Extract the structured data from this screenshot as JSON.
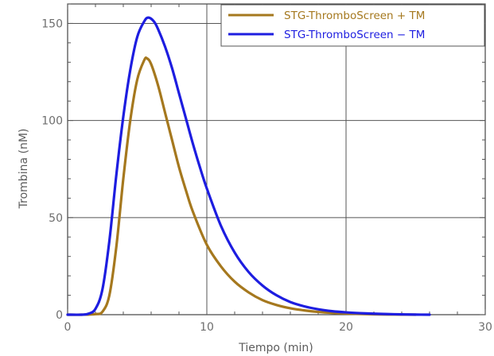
{
  "chart_data": {
    "type": "line",
    "title": "",
    "xlabel": "Tiempo (min)",
    "ylabel": "Trombina (nM)",
    "xlim": [
      0,
      30
    ],
    "ylim": [
      0,
      160
    ],
    "x_ticks": [
      0,
      10,
      20,
      30
    ],
    "y_ticks": [
      0,
      50,
      100,
      150
    ],
    "x_tick_labels": [
      "0",
      "10",
      "20",
      "30"
    ],
    "y_tick_labels": [
      "0",
      "50",
      "100",
      "150"
    ],
    "grid": true,
    "legend_position": "top-right",
    "series": [
      {
        "name": "STG-ThromboScreen + TM",
        "color": "#a5781e",
        "points": [
          [
            0,
            0
          ],
          [
            1,
            0
          ],
          [
            2,
            0.3
          ],
          [
            2.5,
            1.5
          ],
          [
            3,
            10
          ],
          [
            3.5,
            35
          ],
          [
            4,
            70
          ],
          [
            4.5,
            100
          ],
          [
            5,
            121
          ],
          [
            5.5,
            131
          ],
          [
            5.7,
            132
          ],
          [
            6,
            129
          ],
          [
            6.5,
            118
          ],
          [
            7,
            104
          ],
          [
            7.5,
            90
          ],
          [
            8,
            76
          ],
          [
            8.5,
            64
          ],
          [
            9,
            53
          ],
          [
            10,
            36
          ],
          [
            11,
            25
          ],
          [
            12,
            17
          ],
          [
            13,
            11.5
          ],
          [
            14,
            7.5
          ],
          [
            15,
            5
          ],
          [
            16,
            3.3
          ],
          [
            17,
            2.2
          ],
          [
            18,
            1.4
          ],
          [
            19,
            0.9
          ],
          [
            20,
            0.6
          ],
          [
            21,
            0.4
          ],
          [
            22,
            0.2
          ],
          [
            23,
            0.1
          ],
          [
            24,
            0.05
          ],
          [
            25,
            0
          ]
        ]
      },
      {
        "name": "STG-ThromboScreen − TM",
        "color": "#1d1de0",
        "points": [
          [
            0,
            0
          ],
          [
            1,
            0
          ],
          [
            1.5,
            0.5
          ],
          [
            2,
            3
          ],
          [
            2.5,
            13
          ],
          [
            3,
            38
          ],
          [
            3.5,
            72
          ],
          [
            4,
            102
          ],
          [
            4.5,
            126
          ],
          [
            5,
            143
          ],
          [
            5.5,
            151
          ],
          [
            5.8,
            153
          ],
          [
            6.2,
            151
          ],
          [
            6.5,
            147
          ],
          [
            7,
            138
          ],
          [
            7.5,
            127
          ],
          [
            8,
            114
          ],
          [
            8.5,
            101
          ],
          [
            9,
            88
          ],
          [
            9.5,
            76
          ],
          [
            10,
            65
          ],
          [
            11,
            46
          ],
          [
            12,
            32
          ],
          [
            13,
            22
          ],
          [
            14,
            15
          ],
          [
            15,
            10
          ],
          [
            16,
            6.5
          ],
          [
            17,
            4.3
          ],
          [
            18,
            2.8
          ],
          [
            19,
            1.8
          ],
          [
            20,
            1.2
          ],
          [
            21,
            0.8
          ],
          [
            22,
            0.5
          ],
          [
            23,
            0.3
          ],
          [
            24,
            0.15
          ],
          [
            25,
            0.05
          ],
          [
            26,
            0
          ]
        ]
      }
    ]
  }
}
